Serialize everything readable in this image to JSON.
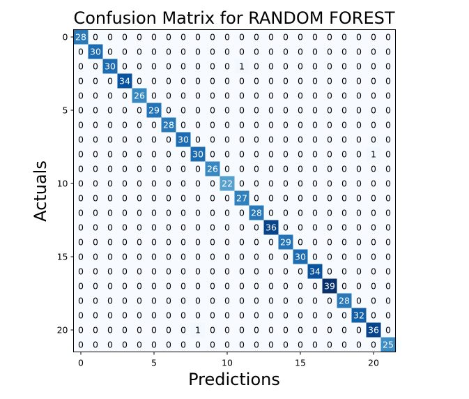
{
  "chart_data": {
    "type": "heatmap",
    "title": "Confusion Matrix for RANDOM FOREST",
    "xlabel": "Predictions",
    "ylabel": "Actuals",
    "x_ticks": [
      "0",
      "5",
      "10",
      "15",
      "20"
    ],
    "y_ticks": [
      "0",
      "5",
      "10",
      "15",
      "20"
    ],
    "colormap": "Blues",
    "vmin": 0,
    "vmax": 39,
    "matrix": [
      [
        28,
        0,
        0,
        0,
        0,
        0,
        0,
        0,
        0,
        0,
        0,
        0,
        0,
        0,
        0,
        0,
        0,
        0,
        0,
        0,
        0,
        0
      ],
      [
        0,
        30,
        0,
        0,
        0,
        0,
        0,
        0,
        0,
        0,
        0,
        0,
        0,
        0,
        0,
        0,
        0,
        0,
        0,
        0,
        0,
        0
      ],
      [
        0,
        0,
        30,
        0,
        0,
        0,
        0,
        0,
        0,
        0,
        0,
        1,
        0,
        0,
        0,
        0,
        0,
        0,
        0,
        0,
        0,
        0
      ],
      [
        0,
        0,
        0,
        34,
        0,
        0,
        0,
        0,
        0,
        0,
        0,
        0,
        0,
        0,
        0,
        0,
        0,
        0,
        0,
        0,
        0,
        0
      ],
      [
        0,
        0,
        0,
        0,
        26,
        0,
        0,
        0,
        0,
        0,
        0,
        0,
        0,
        0,
        0,
        0,
        0,
        0,
        0,
        0,
        0,
        0
      ],
      [
        0,
        0,
        0,
        0,
        0,
        29,
        0,
        0,
        0,
        0,
        0,
        0,
        0,
        0,
        0,
        0,
        0,
        0,
        0,
        0,
        0,
        0
      ],
      [
        0,
        0,
        0,
        0,
        0,
        0,
        28,
        0,
        0,
        0,
        0,
        0,
        0,
        0,
        0,
        0,
        0,
        0,
        0,
        0,
        0,
        0
      ],
      [
        0,
        0,
        0,
        0,
        0,
        0,
        0,
        30,
        0,
        0,
        0,
        0,
        0,
        0,
        0,
        0,
        0,
        0,
        0,
        0,
        0,
        0
      ],
      [
        0,
        0,
        0,
        0,
        0,
        0,
        0,
        0,
        30,
        0,
        0,
        0,
        0,
        0,
        0,
        0,
        0,
        0,
        0,
        0,
        1,
        0
      ],
      [
        0,
        0,
        0,
        0,
        0,
        0,
        0,
        0,
        0,
        26,
        0,
        0,
        0,
        0,
        0,
        0,
        0,
        0,
        0,
        0,
        0,
        0
      ],
      [
        0,
        0,
        0,
        0,
        0,
        0,
        0,
        0,
        0,
        0,
        22,
        0,
        0,
        0,
        0,
        0,
        0,
        0,
        0,
        0,
        0,
        0
      ],
      [
        0,
        0,
        0,
        0,
        0,
        0,
        0,
        0,
        0,
        0,
        0,
        27,
        0,
        0,
        0,
        0,
        0,
        0,
        0,
        0,
        0,
        0
      ],
      [
        0,
        0,
        0,
        0,
        0,
        0,
        0,
        0,
        0,
        0,
        0,
        0,
        28,
        0,
        0,
        0,
        0,
        0,
        0,
        0,
        0,
        0
      ],
      [
        0,
        0,
        0,
        0,
        0,
        0,
        0,
        0,
        0,
        0,
        0,
        0,
        0,
        36,
        0,
        0,
        0,
        0,
        0,
        0,
        0,
        0
      ],
      [
        0,
        0,
        0,
        0,
        0,
        0,
        0,
        0,
        0,
        0,
        0,
        0,
        0,
        0,
        29,
        0,
        0,
        0,
        0,
        0,
        0,
        0
      ],
      [
        0,
        0,
        0,
        0,
        0,
        0,
        0,
        0,
        0,
        0,
        0,
        0,
        0,
        0,
        0,
        30,
        0,
        0,
        0,
        0,
        0,
        0
      ],
      [
        0,
        0,
        0,
        0,
        0,
        0,
        0,
        0,
        0,
        0,
        0,
        0,
        0,
        0,
        0,
        0,
        34,
        0,
        0,
        0,
        0,
        0
      ],
      [
        0,
        0,
        0,
        0,
        0,
        0,
        0,
        0,
        0,
        0,
        0,
        0,
        0,
        0,
        0,
        0,
        0,
        39,
        0,
        0,
        0,
        0
      ],
      [
        0,
        0,
        0,
        0,
        0,
        0,
        0,
        0,
        0,
        0,
        0,
        0,
        0,
        0,
        0,
        0,
        0,
        0,
        28,
        0,
        0,
        0
      ],
      [
        0,
        0,
        0,
        0,
        0,
        0,
        0,
        0,
        0,
        0,
        0,
        0,
        0,
        0,
        0,
        0,
        0,
        0,
        0,
        32,
        0,
        0
      ],
      [
        0,
        0,
        0,
        0,
        0,
        0,
        0,
        0,
        1,
        0,
        0,
        0,
        0,
        0,
        0,
        0,
        0,
        0,
        0,
        0,
        36,
        0
      ],
      [
        0,
        0,
        0,
        0,
        0,
        0,
        0,
        0,
        0,
        0,
        0,
        0,
        0,
        0,
        0,
        0,
        0,
        0,
        0,
        0,
        0,
        25
      ]
    ]
  }
}
